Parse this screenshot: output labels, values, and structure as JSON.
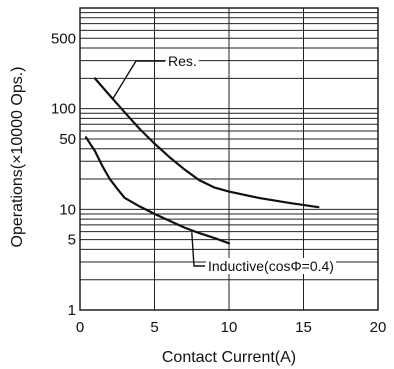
{
  "chart_data": {
    "type": "line",
    "xlabel": "Contact Current(A)",
    "ylabel": "Operations(×10000 Ops.)",
    "xlim": [
      0,
      20
    ],
    "ylim": [
      1,
      1000
    ],
    "y_scale": "log",
    "grid": true,
    "x_ticks": [
      "0",
      "5",
      "10",
      "15",
      "20"
    ],
    "y_ticks": [
      {
        "value": 1,
        "label": "1"
      },
      {
        "value": 5,
        "label": "5"
      },
      {
        "value": 10,
        "label": "10"
      },
      {
        "value": 50,
        "label": "50"
      },
      {
        "value": 100,
        "label": "100"
      },
      {
        "value": 500,
        "label": "500"
      }
    ],
    "series": [
      {
        "name": "Res.",
        "x": [
          1.0,
          2.0,
          3.0,
          4.0,
          5.0,
          6.0,
          7.0,
          8.0,
          9.0,
          10.0,
          12.0,
          14.0,
          16.0
        ],
        "y": [
          200,
          135,
          92,
          63,
          45,
          33,
          25,
          19.5,
          16.5,
          15,
          13,
          11.6,
          10.5
        ]
      },
      {
        "name": "Inductive(cosΦ=0.4)",
        "x": [
          0.4,
          1.0,
          1.5,
          2.0,
          2.5,
          3.0,
          4.0,
          5.0,
          6.0,
          7.0,
          8.0,
          9.0,
          10.0
        ],
        "y": [
          52,
          38,
          27,
          20,
          16,
          13,
          10.7,
          9.0,
          7.7,
          6.6,
          5.8,
          5.2,
          4.6
        ]
      }
    ],
    "annotations": [
      {
        "series": "Res.",
        "text": "Res."
      },
      {
        "series": "Inductive(cosΦ=0.4)",
        "text": "Inductive(cosΦ=0.4)"
      }
    ]
  }
}
